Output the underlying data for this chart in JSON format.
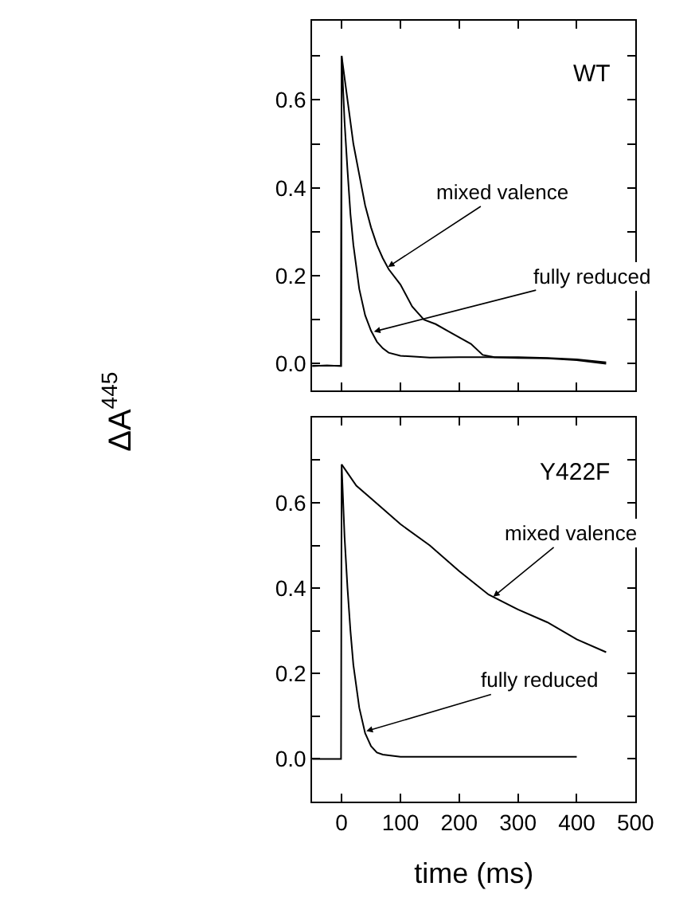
{
  "chart_data": [
    {
      "type": "line",
      "title": "WT",
      "ylabel": "ΔA$^{445}$",
      "tick_labels": "y",
      "marker": "none",
      "line_style": "solid",
      "xlim": [
        -50,
        500
      ],
      "xticks": [
        {
          "value": 0,
          "label": null
        },
        {
          "value": 100,
          "label": null
        },
        {
          "value": 200,
          "label": null
        },
        {
          "value": 300,
          "label": null
        },
        {
          "value": 400,
          "label": null
        },
        {
          "value": 500,
          "label": null
        }
      ],
      "ylim": [
        -0.06,
        0.78
      ],
      "yticks": [
        {
          "value": 0.0,
          "label": "0.0"
        },
        {
          "value": 0.1,
          "label": null
        },
        {
          "value": 0.2,
          "label": "0.2"
        },
        {
          "value": 0.3,
          "label": null
        },
        {
          "value": 0.4,
          "label": "0.4"
        },
        {
          "value": 0.5,
          "label": null
        },
        {
          "value": 0.6,
          "label": "0.6"
        },
        {
          "value": 0.7,
          "label": null
        }
      ],
      "series": [
        {
          "color": "#000000",
          "x": [
            -50,
            -25,
            -1,
            0,
            5,
            10,
            15,
            20,
            30,
            40,
            50,
            60,
            70,
            80,
            100,
            150,
            200,
            250,
            300,
            350,
            400,
            450
          ],
          "values": [
            -0.005,
            -0.004,
            -0.005,
            0.7,
            0.55,
            0.44,
            0.34,
            0.27,
            0.17,
            0.11,
            0.075,
            0.05,
            0.035,
            0.025,
            0.018,
            0.014,
            0.015,
            0.015,
            0.013,
            0.012,
            0.008,
            0.0
          ]
        },
        {
          "color": "#000000",
          "x": [
            -50,
            -25,
            -1,
            0,
            10,
            20,
            30,
            40,
            50,
            60,
            70,
            80,
            100,
            120,
            140,
            160,
            180,
            200,
            220,
            240,
            260,
            300,
            350,
            400,
            450
          ],
          "values": [
            -0.005,
            -0.004,
            -0.005,
            0.7,
            0.6,
            0.5,
            0.43,
            0.36,
            0.31,
            0.27,
            0.24,
            0.215,
            0.18,
            0.13,
            0.1,
            0.09,
            0.075,
            0.06,
            0.045,
            0.02,
            0.015,
            0.015,
            0.013,
            0.01,
            0.003
          ]
        }
      ],
      "annotations": [
        {
          "text": "mixed valence",
          "x": 79,
          "y": 0.22
        },
        {
          "text": "fully reduced",
          "x": 55,
          "y": 0.073
        }
      ]
    },
    {
      "type": "line",
      "title": "Y422F",
      "xlabel": "time (ms)",
      "marker": "none",
      "line_style": "solid",
      "xlim": [
        -50,
        500
      ],
      "xticks": [
        0,
        100,
        200,
        300,
        400,
        500
      ],
      "ylim": [
        -0.1,
        0.8
      ],
      "yticks": [
        {
          "value": 0.0,
          "label": "0.0"
        },
        {
          "value": 0.1,
          "label": null
        },
        {
          "value": 0.2,
          "label": "0.2"
        },
        {
          "value": 0.3,
          "label": null
        },
        {
          "value": 0.4,
          "label": "0.4"
        },
        {
          "value": 0.5,
          "label": null
        },
        {
          "value": 0.6,
          "label": "0.6"
        },
        {
          "value": 0.7,
          "label": null
        }
      ],
      "series": [
        {
          "color": "#000000",
          "x": [
            -50,
            -25,
            -1,
            0,
            5,
            10,
            15,
            20,
            30,
            40,
            50,
            60,
            70,
            100,
            200,
            300,
            400
          ],
          "values": [
            0.0,
            0.0,
            0.0,
            0.69,
            0.52,
            0.4,
            0.3,
            0.22,
            0.12,
            0.06,
            0.03,
            0.015,
            0.01,
            0.005,
            0.005,
            0.005,
            0.005
          ]
        },
        {
          "color": "#000000",
          "x": [
            0,
            5,
            25,
            50,
            100,
            150,
            200,
            250,
            300,
            350,
            400,
            450
          ],
          "values": [
            0.69,
            0.68,
            0.64,
            0.61,
            0.55,
            0.5,
            0.44,
            0.385,
            0.35,
            0.32,
            0.28,
            0.25
          ]
        }
      ],
      "annotations": [
        {
          "text": "mixed valence",
          "x": 258,
          "y": 0.38
        },
        {
          "text": "fully reduced",
          "x": 42,
          "y": 0.065
        }
      ]
    }
  ]
}
